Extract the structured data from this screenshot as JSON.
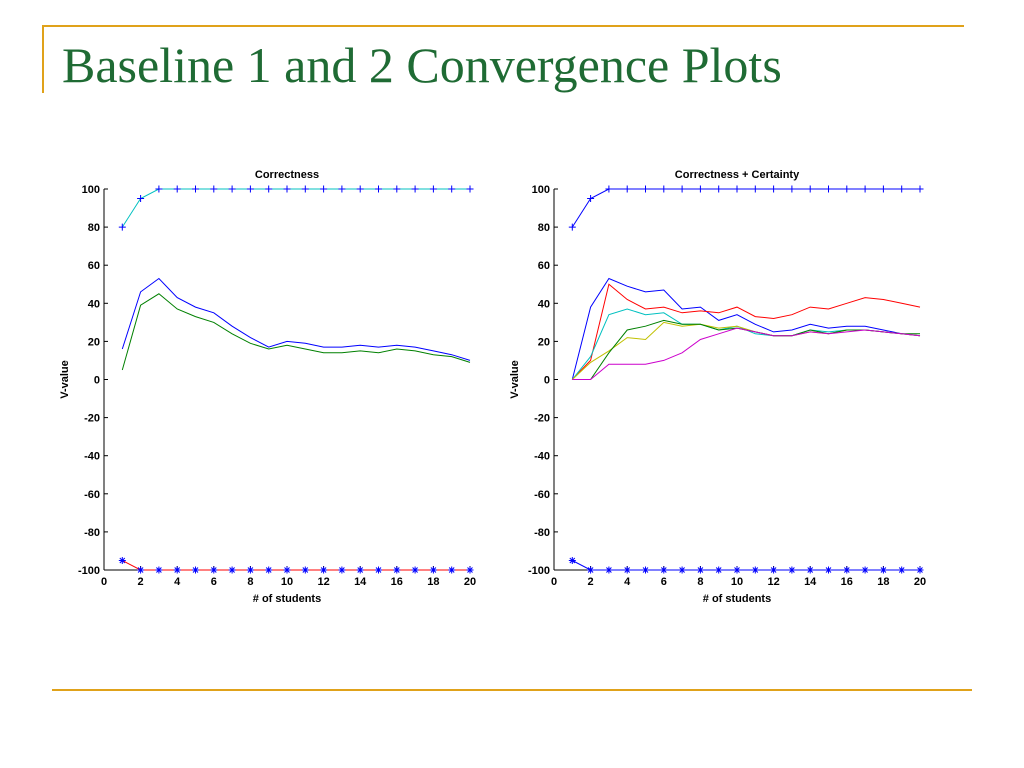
{
  "slide": {
    "title": "Baseline 1 and 2 Convergence Plots"
  },
  "colors": {
    "accent_rule": "#e0a21a",
    "title": "#1f6b34"
  },
  "chart_data": [
    {
      "type": "line",
      "title": "Correctness",
      "xlabel": "# of students",
      "ylabel": "V-value",
      "xlim": [
        0,
        20
      ],
      "ylim": [
        -100,
        100
      ],
      "xticks": [
        0,
        2,
        4,
        6,
        8,
        10,
        12,
        14,
        16,
        18,
        20
      ],
      "yticks": [
        100,
        80,
        60,
        40,
        20,
        0,
        -20,
        -40,
        -60,
        -80,
        -100
      ],
      "grid": false,
      "series": [
        {
          "color": "#00c0c0",
          "marker": "+",
          "marker_color": "#0000ff",
          "x": [
            1,
            2,
            3,
            4,
            5,
            6,
            7,
            8,
            9,
            10,
            11,
            12,
            13,
            14,
            15,
            16,
            17,
            18,
            19,
            20
          ],
          "y": [
            80,
            95,
            100,
            100,
            100,
            100,
            100,
            100,
            100,
            100,
            100,
            100,
            100,
            100,
            100,
            100,
            100,
            100,
            100,
            100
          ]
        },
        {
          "color": "#0000ff",
          "marker": "",
          "x": [
            1,
            2,
            3,
            4,
            5,
            6,
            7,
            8,
            9,
            10,
            11,
            12,
            13,
            14,
            15,
            16,
            17,
            18,
            19,
            20
          ],
          "y": [
            16,
            46,
            53,
            43,
            38,
            35,
            28,
            22,
            17,
            20,
            19,
            17,
            17,
            18,
            17,
            18,
            17,
            15,
            13,
            10
          ]
        },
        {
          "color": "#008000",
          "marker": "",
          "x": [
            1,
            2,
            3,
            4,
            5,
            6,
            7,
            8,
            9,
            10,
            11,
            12,
            13,
            14,
            15,
            16,
            17,
            18,
            19,
            20
          ],
          "y": [
            5,
            39,
            45,
            37,
            33,
            30,
            24,
            19,
            16,
            18,
            16,
            14,
            14,
            15,
            14,
            16,
            15,
            13,
            12,
            9
          ]
        },
        {
          "color": "#ff0000",
          "marker": "*",
          "marker_color": "#0000ff",
          "x": [
            1,
            2,
            3,
            4,
            5,
            6,
            7,
            8,
            9,
            10,
            11,
            12,
            13,
            14,
            15,
            16,
            17,
            18,
            19,
            20
          ],
          "y": [
            -95,
            -100,
            -100,
            -100,
            -100,
            -100,
            -100,
            -100,
            -100,
            -100,
            -100,
            -100,
            -100,
            -100,
            -100,
            -100,
            -100,
            -100,
            -100,
            -100
          ]
        }
      ]
    },
    {
      "type": "line",
      "title": "Correctness + Certainty",
      "xlabel": "# of students",
      "ylabel": "V-value",
      "xlim": [
        0,
        20
      ],
      "ylim": [
        -100,
        100
      ],
      "xticks": [
        0,
        2,
        4,
        6,
        8,
        10,
        12,
        14,
        16,
        18,
        20
      ],
      "yticks": [
        100,
        80,
        60,
        40,
        20,
        0,
        -20,
        -40,
        -60,
        -80,
        -100
      ],
      "grid": false,
      "series": [
        {
          "color": "#0000ff",
          "marker": "+",
          "marker_color": "#0000ff",
          "x": [
            1,
            2,
            3,
            4,
            5,
            6,
            7,
            8,
            9,
            10,
            11,
            12,
            13,
            14,
            15,
            16,
            17,
            18,
            19,
            20
          ],
          "y": [
            80,
            95,
            100,
            100,
            100,
            100,
            100,
            100,
            100,
            100,
            100,
            100,
            100,
            100,
            100,
            100,
            100,
            100,
            100,
            100
          ]
        },
        {
          "color": "#0000ff",
          "marker": "",
          "x": [
            1,
            2,
            3,
            4,
            5,
            6,
            7,
            8,
            9,
            10,
            11,
            12,
            13,
            14,
            15,
            16,
            17,
            18,
            19,
            20
          ],
          "y": [
            0,
            38,
            53,
            49,
            46,
            47,
            37,
            38,
            31,
            34,
            29,
            25,
            26,
            29,
            27,
            28,
            28,
            26,
            24,
            23
          ]
        },
        {
          "color": "#ff0000",
          "marker": "",
          "x": [
            1,
            2,
            3,
            4,
            5,
            6,
            7,
            8,
            9,
            10,
            11,
            12,
            13,
            14,
            15,
            16,
            17,
            18,
            19,
            20
          ],
          "y": [
            0,
            10,
            50,
            42,
            37,
            38,
            35,
            36,
            35,
            38,
            33,
            32,
            34,
            38,
            37,
            40,
            43,
            42,
            40,
            38
          ]
        },
        {
          "color": "#00c0c0",
          "marker": "",
          "x": [
            1,
            2,
            3,
            4,
            5,
            6,
            7,
            8,
            9,
            10,
            11,
            12,
            13,
            14,
            15,
            16,
            17,
            18,
            19,
            20
          ],
          "y": [
            0,
            12,
            34,
            37,
            34,
            35,
            29,
            29,
            26,
            28,
            24,
            23,
            23,
            26,
            25,
            26,
            26,
            25,
            24,
            23
          ]
        },
        {
          "color": "#c0c000",
          "marker": "",
          "x": [
            1,
            2,
            3,
            4,
            5,
            6,
            7,
            8,
            9,
            10,
            11,
            12,
            13,
            14,
            15,
            16,
            17,
            18,
            19,
            20
          ],
          "y": [
            0,
            9,
            15,
            22,
            21,
            30,
            28,
            29,
            27,
            28,
            25,
            23,
            23,
            25,
            24,
            26,
            26,
            25,
            24,
            23
          ]
        },
        {
          "color": "#008000",
          "marker": "",
          "x": [
            1,
            2,
            3,
            4,
            5,
            6,
            7,
            8,
            9,
            10,
            11,
            12,
            13,
            14,
            15,
            16,
            17,
            18,
            19,
            20
          ],
          "y": [
            0,
            0,
            14,
            26,
            28,
            31,
            29,
            29,
            26,
            27,
            25,
            23,
            23,
            26,
            24,
            26,
            26,
            25,
            24,
            24
          ]
        },
        {
          "color": "#cc00cc",
          "marker": "",
          "x": [
            1,
            2,
            3,
            4,
            5,
            6,
            7,
            8,
            9,
            10,
            11,
            12,
            13,
            14,
            15,
            16,
            17,
            18,
            19,
            20
          ],
          "y": [
            0,
            0,
            8,
            8,
            8,
            10,
            14,
            21,
            24,
            27,
            25,
            23,
            23,
            25,
            24,
            25,
            26,
            25,
            24,
            23
          ]
        },
        {
          "color": "#0000ff",
          "marker": "*",
          "marker_color": "#0000ff",
          "x": [
            1,
            2,
            3,
            4,
            5,
            6,
            7,
            8,
            9,
            10,
            11,
            12,
            13,
            14,
            15,
            16,
            17,
            18,
            19,
            20
          ],
          "y": [
            -95,
            -100,
            -100,
            -100,
            -100,
            -100,
            -100,
            -100,
            -100,
            -100,
            -100,
            -100,
            -100,
            -100,
            -100,
            -100,
            -100,
            -100,
            -100,
            -100
          ]
        }
      ]
    }
  ]
}
